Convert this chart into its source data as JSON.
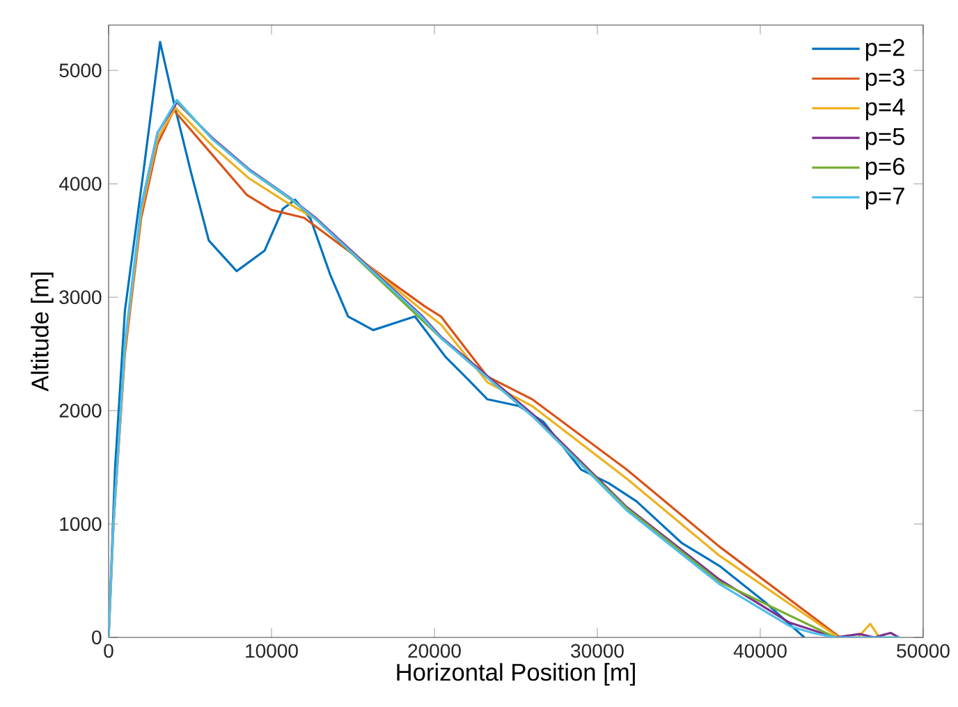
{
  "chart_data": {
    "type": "line",
    "xlabel": "Horizontal Position [m]",
    "ylabel": "Altitude [m]",
    "xlim": [
      0,
      50000
    ],
    "ylim": [
      0,
      5400
    ],
    "xticks": [
      0,
      10000,
      20000,
      30000,
      40000,
      50000
    ],
    "yticks": [
      0,
      1000,
      2000,
      3000,
      4000,
      5000
    ],
    "legend": "top right",
    "grid": false,
    "marker": "none",
    "line_style": "solid",
    "series": [
      {
        "name": "p=2",
        "color": "#0072bd",
        "x": [
          0,
          400,
          1000,
          2140,
          3160,
          4000,
          5040,
          6150,
          7860,
          9570,
          10700,
          11450,
          12400,
          13600,
          14700,
          16240,
          18800,
          20700,
          22100,
          23250,
          25200,
          26700,
          29000,
          30700,
          32400,
          35200,
          37500,
          40300,
          42700
        ],
        "values": [
          0,
          1500,
          2880,
          4110,
          5250,
          4720,
          4110,
          3500,
          3230,
          3410,
          3780,
          3860,
          3690,
          3200,
          2830,
          2710,
          2830,
          2470,
          2270,
          2100,
          2040,
          1900,
          1480,
          1360,
          1200,
          830,
          630,
          310,
          0
        ]
      },
      {
        "name": "p=3",
        "color": "#d95319",
        "x": [
          0,
          300,
          1000,
          2000,
          3000,
          4000,
          6400,
          8500,
          10000,
          12000,
          16400,
          19400,
          20400,
          23250,
          26000,
          31800,
          37500,
          44900
        ],
        "values": [
          0,
          1000,
          2500,
          3700,
          4350,
          4650,
          4250,
          3900,
          3770,
          3700,
          3230,
          2920,
          2830,
          2300,
          2100,
          1480,
          800,
          0
        ]
      },
      {
        "name": "p=4",
        "color": "#edb120",
        "x": [
          0,
          300,
          1000,
          2000,
          3000,
          4100,
          6400,
          8600,
          11000,
          12600,
          16400,
          19300,
          20400,
          23250,
          26000,
          31800,
          37500,
          44800,
          46000,
          46750,
          47300,
          48500
        ],
        "values": [
          0,
          1000,
          2550,
          3750,
          4400,
          4670,
          4330,
          4050,
          3830,
          3700,
          3220,
          2880,
          2760,
          2250,
          2040,
          1400,
          720,
          0,
          0,
          120,
          0,
          0
        ]
      },
      {
        "name": "p=5",
        "color": "#7e2f8e",
        "x": [
          2000,
          3000,
          4190,
          6400,
          8700,
          11200,
          12700,
          16400,
          19200,
          20400,
          26100,
          31800,
          37500,
          41800,
          44600,
          46100,
          47000,
          48000,
          48500
        ],
        "values": [
          3800,
          4450,
          4720,
          4400,
          4120,
          3870,
          3700,
          3210,
          2840,
          2650,
          1960,
          1150,
          510,
          130,
          0,
          30,
          0,
          40,
          0
        ]
      },
      {
        "name": "p=6",
        "color": "#77ac30",
        "x": [
          4190,
          6400,
          8700,
          11200,
          12700,
          20400,
          26100,
          31800,
          37500,
          44600
        ],
        "values": [
          4730,
          4390,
          4110,
          3860,
          3690,
          2640,
          1940,
          1140,
          490,
          0
        ]
      },
      {
        "name": "p=7",
        "color": "#4dbeee",
        "x": [
          0,
          300,
          1000,
          2000,
          3000,
          4190,
          6400,
          8720,
          11280,
          12700,
          16400,
          19200,
          20400,
          26100,
          31800,
          37500,
          41800,
          43200,
          44600,
          48600
        ],
        "values": [
          0,
          1000,
          2600,
          3800,
          4450,
          4740,
          4390,
          4110,
          3860,
          3690,
          3200,
          2830,
          2640,
          1940,
          1120,
          470,
          100,
          40,
          0,
          0
        ]
      }
    ]
  }
}
